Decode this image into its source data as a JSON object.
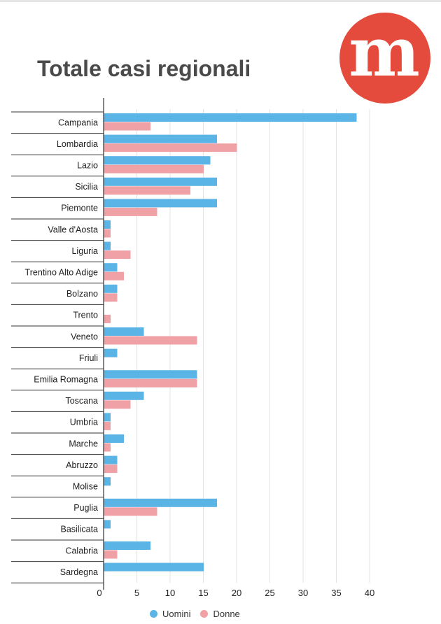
{
  "chart_data": {
    "type": "bar",
    "orientation": "horizontal",
    "title": "Totale casi regionali",
    "categories": [
      "Campania",
      "Lombardia",
      "Lazio",
      "Sicilia",
      "Piemonte",
      "Valle d'Aosta",
      "Liguria",
      "Trentino Alto Adige",
      "Bolzano",
      "Trento",
      "Veneto",
      "Friuli",
      "Emilia Romagna",
      "Toscana",
      "Umbria",
      "Marche",
      "Abruzzo",
      "Molise",
      "Puglia",
      "Basilicata",
      "Calabria",
      "Sardegna"
    ],
    "series": [
      {
        "name": "Uomini",
        "color": "#5ab4e5",
        "values": [
          38,
          17,
          16,
          17,
          17,
          1,
          1,
          2,
          2,
          0,
          6,
          2,
          14,
          6,
          1,
          3,
          2,
          1,
          17,
          1,
          7,
          15
        ]
      },
      {
        "name": "Donne",
        "color": "#f0a1a5",
        "values": [
          7,
          20,
          15,
          13,
          8,
          1,
          4,
          3,
          2,
          1,
          14,
          0,
          14,
          4,
          1,
          1,
          2,
          0,
          8,
          0,
          2,
          0
        ]
      }
    ],
    "xlim": [
      0,
      40
    ],
    "xticks": [
      "0",
      "5",
      "10",
      "15",
      "20",
      "25",
      "30",
      "35",
      "40"
    ],
    "grid": true,
    "legend_position": "bottom"
  },
  "logo": {
    "letter": "m",
    "color": "#e54b3c",
    "icon": "m-logo-icon"
  }
}
